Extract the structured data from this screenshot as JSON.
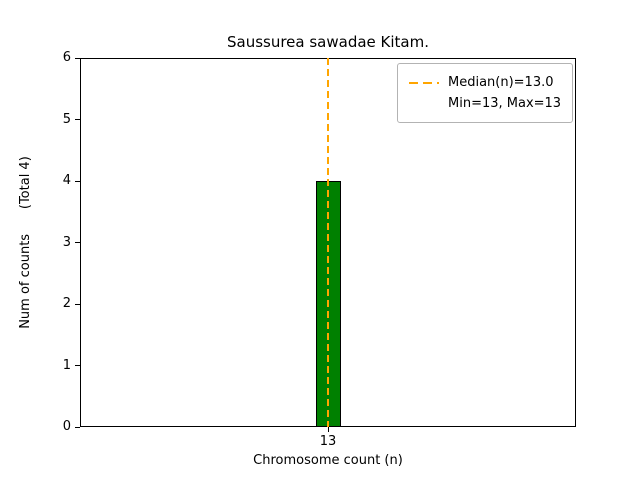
{
  "figure": {
    "title": "Saussurea sawadae Kitam.",
    "xlabel": "Chromosome count (n)",
    "ylabel": "Num of counts      (Total 4)"
  },
  "legend": {
    "median_label": "Median(n)=13.0",
    "minmax_label": "Min=13, Max=13"
  },
  "chart_data": {
    "type": "bar",
    "title": "Saussurea sawadae Kitam.",
    "xlabel": "Chromosome count (n)",
    "ylabel": "Num of counts (Total 4)",
    "categories": [
      "13"
    ],
    "values": [
      4
    ],
    "total": 4,
    "ylim": [
      0,
      6
    ],
    "yticks": [
      0,
      1,
      2,
      3,
      4,
      5,
      6
    ],
    "grid": false,
    "bar_color": "#008000",
    "bar_edge_color": "#000000",
    "median": {
      "value": 13.0,
      "label": "Median(n)=13.0",
      "line_color": "#ffa500",
      "line_style": "dashed"
    },
    "min": 13,
    "max": 13,
    "legend_position": "upper right"
  }
}
